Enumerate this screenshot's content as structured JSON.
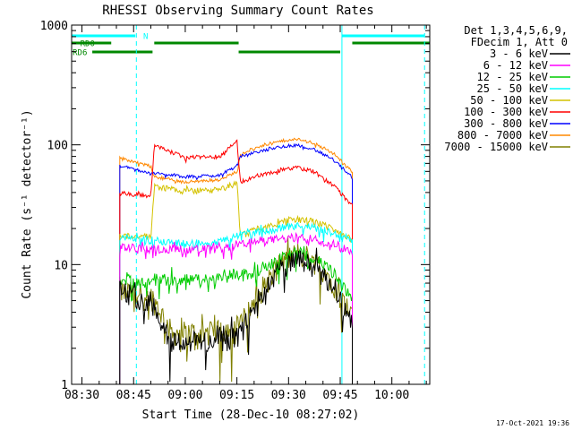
{
  "chart_data": {
    "type": "line",
    "title": "RHESSI Observing Summary Count Rates",
    "xlabel": "Start Time (28-Dec-10 08:27:02)",
    "ylabel": "Count Rate (s⁻¹ detector⁻¹)",
    "yscale": "log",
    "ylim": [
      1,
      1000
    ],
    "xlim": [
      507.0,
      611.0
    ],
    "x_unit": "minutes after 00:00 UT, 28-Dec-10",
    "x_ticks": [
      {
        "value": 510,
        "label": "08:30"
      },
      {
        "value": 525,
        "label": "08:45"
      },
      {
        "value": 540,
        "label": "09:00"
      },
      {
        "value": 555,
        "label": "09:15"
      },
      {
        "value": 570,
        "label": "09:30"
      },
      {
        "value": 585,
        "label": "09:45"
      },
      {
        "value": 600,
        "label": "10:00"
      }
    ],
    "y_ticks": [
      {
        "value": 1,
        "label": "1"
      },
      {
        "value": 10,
        "label": "10"
      },
      {
        "value": 100,
        "label": "100"
      },
      {
        "value": 1000,
        "label": "1000"
      }
    ],
    "legend_header": [
      "Det 1,3,4,5,6,9,",
      "FDecim 1, Att 0"
    ],
    "legend_placement": "right",
    "series": [
      {
        "name": "3 - 6 keV",
        "color": "#000000",
        "x": [
          521.0,
          530.0,
          532.0,
          536.0,
          548.0,
          555.0,
          557.0,
          561.0,
          564.0,
          567.0,
          571.0,
          573.0,
          575.0,
          579.0,
          583.0,
          586.0,
          587.5,
          588.5
        ],
        "y": [
          6,
          5,
          4,
          2.3,
          2.3,
          2.5,
          3,
          5,
          7,
          9,
          10.5,
          11,
          10.5,
          9,
          6,
          4.5,
          3.5,
          3
        ]
      },
      {
        "name": "6 - 12 keV",
        "color": "#ff00ff",
        "x": [
          521.0,
          530.0,
          531.0,
          540.0,
          550.0,
          555.0,
          556.0,
          563.0,
          569.0,
          573.0,
          577.0,
          583.0,
          588.5
        ],
        "y": [
          14,
          13.5,
          13.5,
          13.5,
          13.5,
          14,
          15,
          16,
          16.5,
          17,
          16.5,
          15,
          13
        ]
      },
      {
        "name": "12 - 25 keV",
        "color": "#00cc00",
        "x": [
          521.0,
          530.0,
          531.0,
          540.0,
          550.0,
          555.0,
          557.0,
          561.0,
          564.0,
          567.0,
          571.0,
          573.0,
          575.0,
          579.0,
          583.0,
          586.0,
          588.5
        ],
        "y": [
          7.5,
          7,
          7.5,
          7.5,
          7.5,
          8.5,
          8,
          9,
          10,
          11.5,
          12.5,
          12.5,
          12,
          10.5,
          8.5,
          6.5,
          5
        ]
      },
      {
        "name": "25 - 50 keV",
        "color": "#00ffff",
        "x": [
          521.0,
          530.0,
          531.0,
          540.0,
          550.0,
          555.0,
          556.0,
          563.0,
          569.0,
          573.0,
          577.0,
          583.0,
          588.5
        ],
        "y": [
          17,
          16,
          16,
          15,
          15.5,
          17.5,
          18,
          19,
          20.5,
          21,
          20.5,
          18.5,
          16
        ]
      },
      {
        "name": "50 - 100 keV",
        "color": "#d4c200",
        "x": [
          521.0,
          530.0,
          531.0,
          540.0,
          550.0,
          555.0,
          556.0,
          563.0,
          569.0,
          573.0,
          577.0,
          583.0,
          588.5
        ],
        "y": [
          17.5,
          17,
          45,
          41,
          42,
          48,
          18,
          21,
          23,
          24,
          23,
          20,
          16
        ]
      },
      {
        "name": "100 - 300 keV",
        "color": "#ff0000",
        "x": [
          521.0,
          530.0,
          531.0,
          540.0,
          550.0,
          555.0,
          556.0,
          563.0,
          569.0,
          573.0,
          577.0,
          583.0,
          588.5
        ],
        "y": [
          40,
          37,
          100,
          78,
          80,
          108,
          49,
          57,
          63,
          64,
          60,
          46,
          31
        ]
      },
      {
        "name": "300 - 800 keV",
        "color": "#0000ff",
        "x": [
          521.0,
          530.0,
          531.0,
          540.0,
          550.0,
          555.0,
          556.0,
          563.0,
          569.0,
          573.0,
          577.0,
          583.0,
          588.5
        ],
        "y": [
          67,
          58,
          58,
          54,
          56,
          67,
          80,
          90,
          98,
          99,
          93,
          75,
          54
        ]
      },
      {
        "name": "800 - 7000 keV",
        "color": "#ff8800",
        "x": [
          521.0,
          530.0,
          531.0,
          540.0,
          550.0,
          555.0,
          556.0,
          563.0,
          569.0,
          573.0,
          577.0,
          583.0,
          588.5
        ],
        "y": [
          78,
          66,
          54,
          49,
          51,
          60,
          84,
          100,
          109,
          111,
          104,
          85,
          60
        ]
      },
      {
        "name": "7000 - 15000 keV",
        "color": "#808000",
        "x": [
          521.0,
          530.0,
          532.0,
          536.0,
          548.0,
          555.0,
          557.0,
          561.0,
          564.0,
          567.0,
          571.0,
          573.0,
          575.0,
          579.0,
          583.0,
          586.0,
          588.5
        ],
        "y": [
          6,
          5.5,
          4.5,
          2.7,
          2.7,
          3,
          3.5,
          5.5,
          7.5,
          10,
          12,
          12.5,
          12,
          10,
          7,
          5,
          3.5
        ]
      }
    ],
    "data_start": 521.0,
    "data_end": 588.5,
    "steps": [
      530.5,
      555.5
    ],
    "night_shading": [
      {
        "from": 507.0,
        "to": 521.0
      },
      {
        "from": 588.5,
        "to": 611.0
      }
    ],
    "cyan_vlines": [
      507.0,
      585.5
    ],
    "cyan_dashed_vlines": [
      525.8,
      609.5
    ],
    "flag_bars": [
      {
        "label": "N",
        "color": "#00ffff",
        "segments": [
          [
            507.0,
            525.5
          ],
          [
            585.5,
            609.5
          ]
        ]
      },
      {
        "label": "RD0",
        "color": "#008800",
        "segments": [
          [
            507.0,
            518.5
          ],
          [
            531.0,
            555.5
          ],
          [
            588.5,
            611.0
          ]
        ]
      },
      {
        "label": "RD6",
        "color": "#008800",
        "segments": [
          [
            513.0,
            530.5
          ],
          [
            555.5,
            585.0
          ]
        ]
      }
    ]
  },
  "footer": {
    "timestamp": "17-Oct-2021 19:36"
  }
}
